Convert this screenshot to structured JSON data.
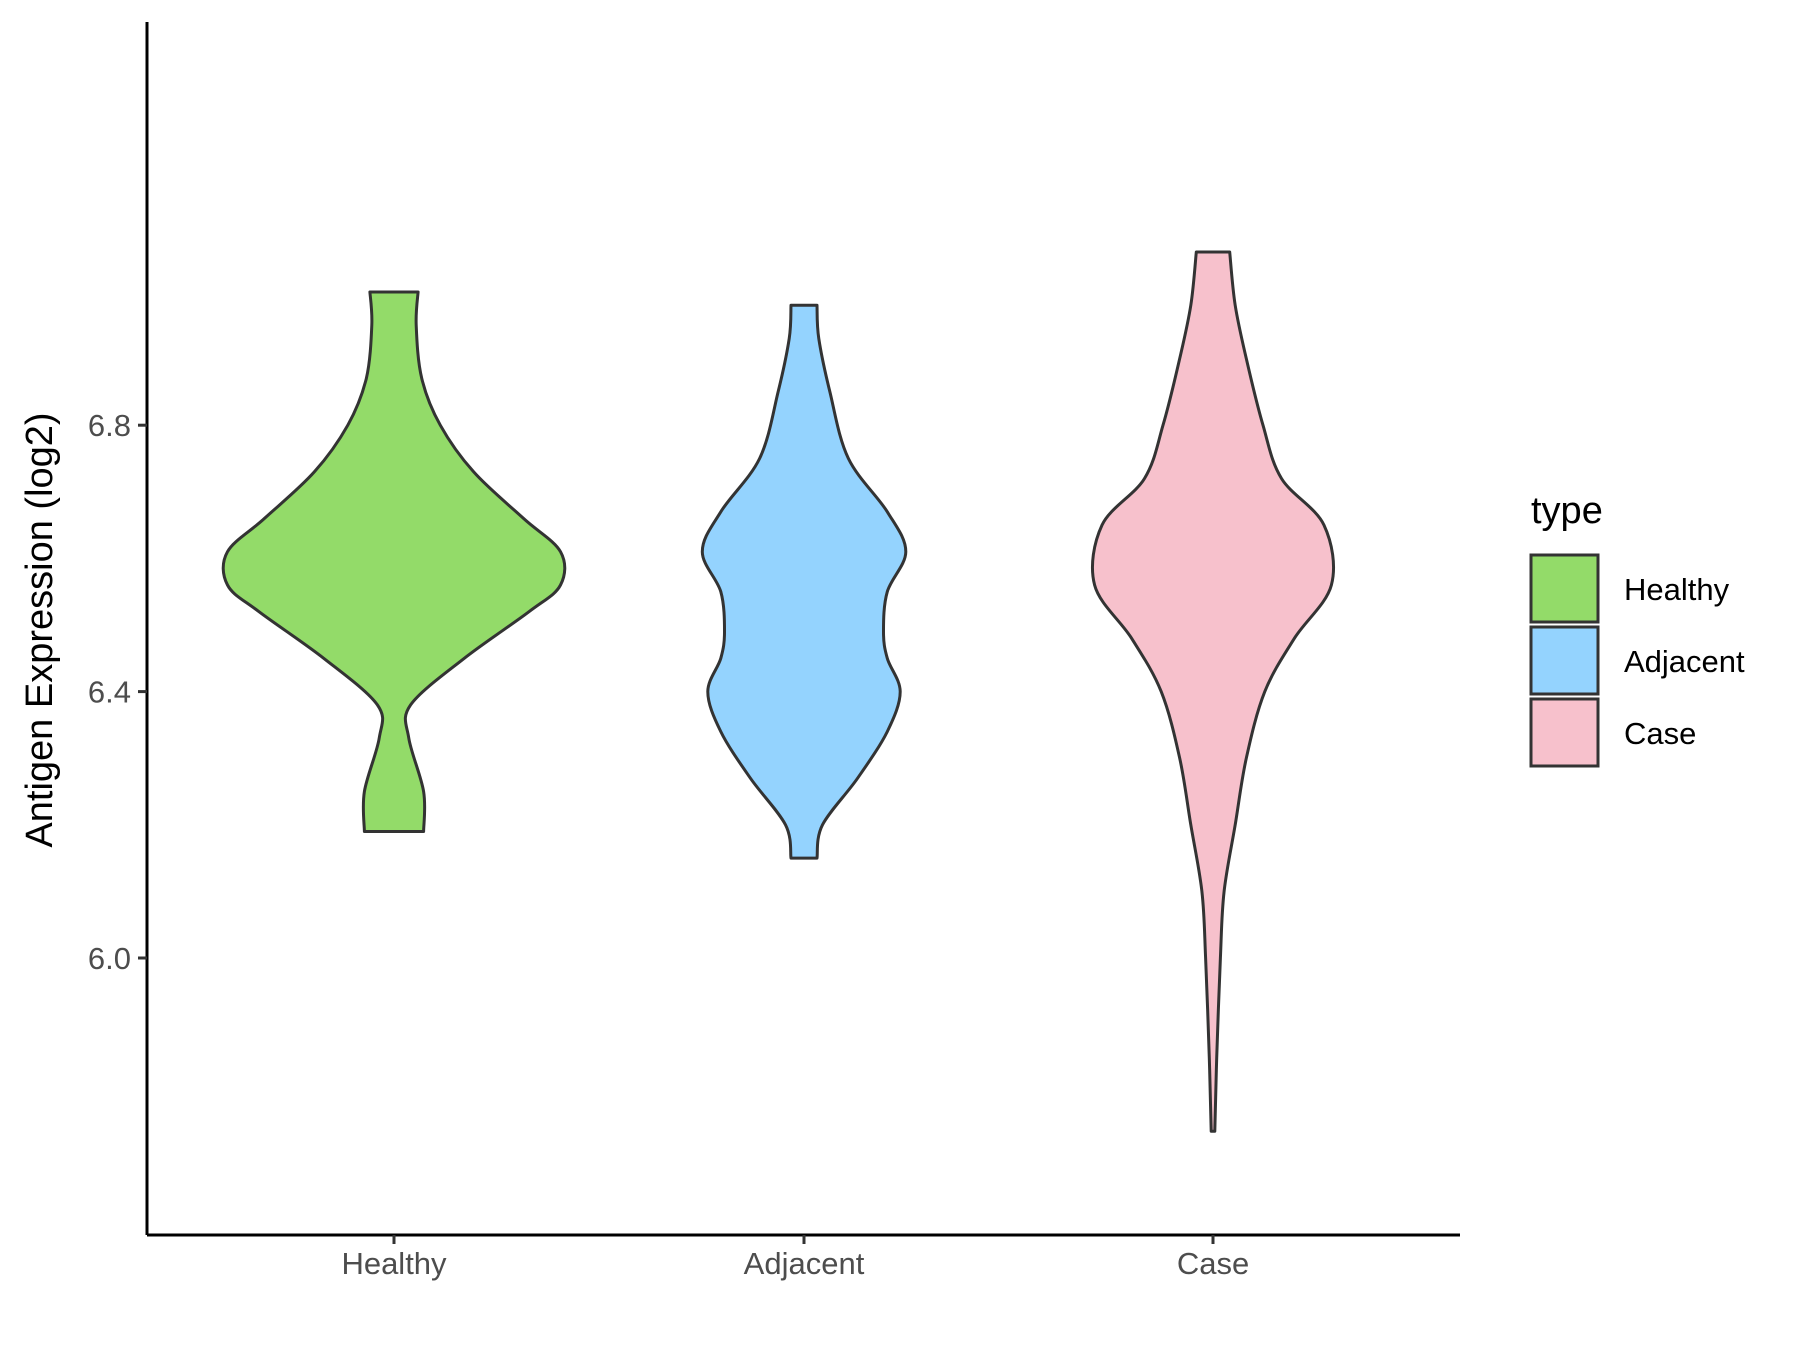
{
  "chart_data": {
    "type": "violin",
    "ylabel": "Antigen Expression (log2)",
    "xlabel": "",
    "ylim": [
      5.67,
      7.14
    ],
    "yticks": [
      6.0,
      6.4,
      6.8
    ],
    "ytick_labels": [
      "6.0",
      "6.4",
      "6.8"
    ],
    "categories": [
      "Healthy",
      "Adjacent",
      "Case"
    ],
    "legend": {
      "title": "type",
      "entries": [
        "Healthy",
        "Adjacent",
        "Case"
      ],
      "position": "right"
    },
    "grid": false,
    "series": [
      {
        "name": "Healthy",
        "color": "#93DB69",
        "min": 6.19,
        "max": 7.0,
        "profile": [
          [
            6.19,
            0.16
          ],
          [
            6.25,
            0.16
          ],
          [
            6.33,
            0.08
          ],
          [
            6.38,
            0.09
          ],
          [
            6.45,
            0.38
          ],
          [
            6.52,
            0.73
          ],
          [
            6.56,
            0.9
          ],
          [
            6.61,
            0.9
          ],
          [
            6.66,
            0.7
          ],
          [
            6.73,
            0.43
          ],
          [
            6.8,
            0.25
          ],
          [
            6.87,
            0.15
          ],
          [
            6.95,
            0.12
          ],
          [
            7.0,
            0.13
          ]
        ]
      },
      {
        "name": "Adjacent",
        "color": "#94D3FE",
        "min": 6.15,
        "max": 6.98,
        "profile": [
          [
            6.15,
            0.07
          ],
          [
            6.2,
            0.1
          ],
          [
            6.27,
            0.29
          ],
          [
            6.34,
            0.45
          ],
          [
            6.4,
            0.52
          ],
          [
            6.45,
            0.45
          ],
          [
            6.49,
            0.43
          ],
          [
            6.55,
            0.45
          ],
          [
            6.61,
            0.55
          ],
          [
            6.67,
            0.45
          ],
          [
            6.75,
            0.24
          ],
          [
            6.85,
            0.14
          ],
          [
            6.93,
            0.08
          ],
          [
            6.98,
            0.07
          ]
        ]
      },
      {
        "name": "Case",
        "color": "#F7C1CC",
        "min": 5.74,
        "max": 7.06,
        "profile": [
          [
            5.74,
            0.01
          ],
          [
            5.85,
            0.02
          ],
          [
            6.0,
            0.04
          ],
          [
            6.1,
            0.06
          ],
          [
            6.2,
            0.12
          ],
          [
            6.3,
            0.18
          ],
          [
            6.4,
            0.28
          ],
          [
            6.48,
            0.44
          ],
          [
            6.56,
            0.64
          ],
          [
            6.65,
            0.6
          ],
          [
            6.72,
            0.37
          ],
          [
            6.8,
            0.27
          ],
          [
            6.9,
            0.18
          ],
          [
            6.98,
            0.12
          ],
          [
            7.06,
            0.09
          ]
        ]
      }
    ]
  }
}
